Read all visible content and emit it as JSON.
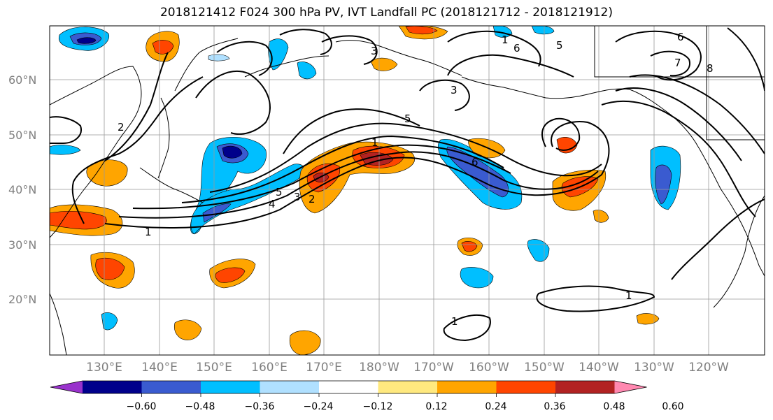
{
  "title": "2018121412 F024 300 hPa PV, IVT Landfall PC (2018121712 - 2018121912)",
  "lat_labels": [
    "60°N",
    "50°N",
    "40°N",
    "30°N",
    "20°N"
  ],
  "lon_labels": [
    "130°E",
    "140°E",
    "150°E",
    "160°E",
    "170°E",
    "180°W",
    "170°W",
    "160°W",
    "150°W",
    "140°W",
    "130°W",
    "120°W"
  ],
  "contour_labels": [
    "1",
    "2",
    "3",
    "4",
    "5",
    "6",
    "1",
    "2",
    "3",
    "5",
    "6",
    "7",
    "8",
    "1",
    "3",
    "5",
    "6",
    "1",
    "1"
  ],
  "colorbar": {
    "ticks": [
      "−0.60",
      "−0.48",
      "−0.36",
      "−0.24",
      "−0.12",
      "0.12",
      "0.24",
      "0.36",
      "0.48",
      "0.60"
    ],
    "colors": [
      "#9932cc",
      "#00008b",
      "#3a5bd0",
      "#00bfff",
      "#b0e0ff",
      "#ffffff",
      "#ffe97f",
      "#ffa500",
      "#ff4500",
      "#b22222",
      "#ff88b0"
    ]
  }
}
